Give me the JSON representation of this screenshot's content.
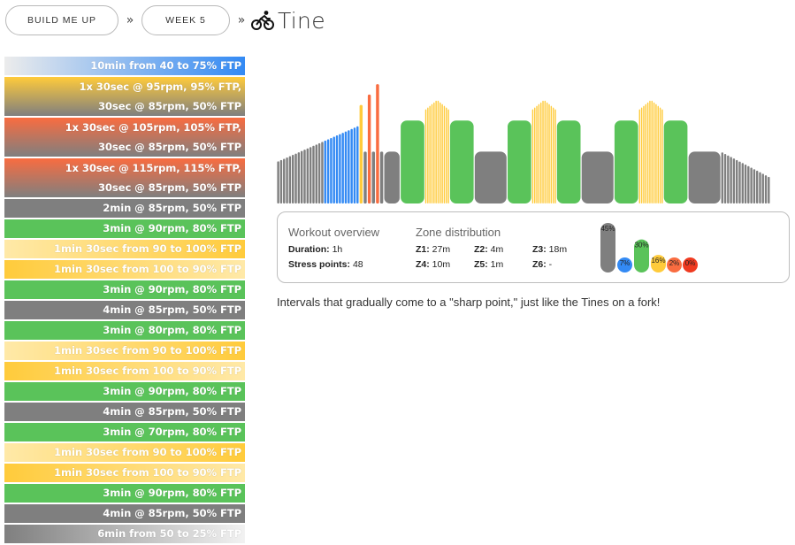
{
  "breadcrumb": {
    "plan_label": "BUILD ME UP",
    "week_label": "WEEK 5",
    "separator": "»",
    "title": "Tine",
    "title_icon": "cyclist-icon"
  },
  "colors": {
    "z1": "#7f7f7f",
    "z2": "#338af4",
    "z3": "#5ac35a",
    "z4": "#ffcb3b",
    "z5": "#f96c40",
    "z6": "#ef3a20"
  },
  "intervals": [
    {
      "lines": [
        "10min from 40 to 75% FTP"
      ],
      "bg": "linear-gradient(to right,#ececec,#338af4)"
    },
    {
      "lines": [
        "1x 30sec @ 95rpm, 95% FTP,",
        "30sec @ 85rpm, 50% FTP"
      ],
      "bg": "linear-gradient(to bottom,#ffcb3b,#7f7f7f)"
    },
    {
      "lines": [
        "1x 30sec @ 105rpm, 105% FTP,",
        "30sec @ 85rpm, 50% FTP"
      ],
      "bg": "linear-gradient(to bottom,#f96c40,#7f7f7f)"
    },
    {
      "lines": [
        "1x 30sec @ 115rpm, 115% FTP,",
        "30sec @ 85rpm, 50% FTP"
      ],
      "bg": "linear-gradient(to bottom,#f96c40,#7f7f7f)"
    },
    {
      "lines": [
        "2min @ 85rpm, 50% FTP"
      ],
      "bg": "#7f7f7f"
    },
    {
      "lines": [
        "3min @ 90rpm, 80% FTP"
      ],
      "bg": "#5ac35a"
    },
    {
      "lines": [
        "1min 30sec from 90 to 100% FTP"
      ],
      "bg": "linear-gradient(to right,#ffe9a8,#ffcb3b)"
    },
    {
      "lines": [
        "1min 30sec from 100 to 90% FTP"
      ],
      "bg": "linear-gradient(to right,#ffcb3b,#ffe9a8)"
    },
    {
      "lines": [
        "3min @ 90rpm, 80% FTP"
      ],
      "bg": "#5ac35a"
    },
    {
      "lines": [
        "4min @ 85rpm, 50% FTP"
      ],
      "bg": "#7f7f7f"
    },
    {
      "lines": [
        "3min @ 80rpm, 80% FTP"
      ],
      "bg": "#5ac35a"
    },
    {
      "lines": [
        "1min 30sec from 90 to 100% FTP"
      ],
      "bg": "linear-gradient(to right,#ffe9a8,#ffcb3b)"
    },
    {
      "lines": [
        "1min 30sec from 100 to 90% FTP"
      ],
      "bg": "linear-gradient(to right,#ffcb3b,#ffe9a8)"
    },
    {
      "lines": [
        "3min @ 90rpm, 80% FTP"
      ],
      "bg": "#5ac35a"
    },
    {
      "lines": [
        "4min @ 85rpm, 50% FTP"
      ],
      "bg": "#7f7f7f"
    },
    {
      "lines": [
        "3min @ 70rpm, 80% FTP"
      ],
      "bg": "#5ac35a"
    },
    {
      "lines": [
        "1min 30sec from 90 to 100% FTP"
      ],
      "bg": "linear-gradient(to right,#ffe9a8,#ffcb3b)"
    },
    {
      "lines": [
        "1min 30sec from 100 to 90% FTP"
      ],
      "bg": "linear-gradient(to right,#ffcb3b,#ffe9a8)"
    },
    {
      "lines": [
        "3min @ 90rpm, 80% FTP"
      ],
      "bg": "#5ac35a"
    },
    {
      "lines": [
        "4min @ 85rpm, 50% FTP"
      ],
      "bg": "#7f7f7f"
    },
    {
      "lines": [
        "6min from 50 to 25% FTP"
      ],
      "bg": "linear-gradient(to right,#7f7f7f,#f2f2f2)"
    }
  ],
  "overview": {
    "title": "Workout overview",
    "duration_label": "Duration:",
    "duration_value": "1h",
    "stress_label": "Stress points:",
    "stress_value": "48",
    "zone_title": "Zone distribution",
    "zones": [
      {
        "label": "Z1:",
        "value": "27m",
        "pct": "45%",
        "fraction": 0.45
      },
      {
        "label": "Z2:",
        "value": "4m",
        "pct": "7%",
        "fraction": 0.07
      },
      {
        "label": "Z3:",
        "value": "18m",
        "pct": "30%",
        "fraction": 0.3
      },
      {
        "label": "Z4:",
        "value": "10m",
        "pct": "16%",
        "fraction": 0.16
      },
      {
        "label": "Z5:",
        "value": "1m",
        "pct": "2%",
        "fraction": 0.02
      },
      {
        "label": "Z6:",
        "value": "-",
        "pct": "0%",
        "fraction": 0.0
      }
    ]
  },
  "description": "Intervals that gradually come to a \"sharp point,\" just like the Tines on a fork!",
  "workout_profile": {
    "segments": [
      {
        "type": "ramp",
        "duration_s": 600,
        "from": 0.4,
        "to": 0.75
      },
      {
        "type": "steady",
        "duration_s": 30,
        "power": 0.95
      },
      {
        "type": "steady",
        "duration_s": 30,
        "power": 0.5
      },
      {
        "type": "steady",
        "duration_s": 30,
        "power": 1.05
      },
      {
        "type": "steady",
        "duration_s": 30,
        "power": 0.5
      },
      {
        "type": "steady",
        "duration_s": 30,
        "power": 1.15
      },
      {
        "type": "steady",
        "duration_s": 30,
        "power": 0.5
      },
      {
        "type": "steady",
        "duration_s": 120,
        "power": 0.5
      },
      {
        "type": "steady",
        "duration_s": 180,
        "power": 0.8
      },
      {
        "type": "ramp",
        "duration_s": 90,
        "from": 0.9,
        "to": 1.0
      },
      {
        "type": "ramp",
        "duration_s": 90,
        "from": 1.0,
        "to": 0.9
      },
      {
        "type": "steady",
        "duration_s": 180,
        "power": 0.8
      },
      {
        "type": "steady",
        "duration_s": 240,
        "power": 0.5
      },
      {
        "type": "steady",
        "duration_s": 180,
        "power": 0.8
      },
      {
        "type": "ramp",
        "duration_s": 90,
        "from": 0.9,
        "to": 1.0
      },
      {
        "type": "ramp",
        "duration_s": 90,
        "from": 1.0,
        "to": 0.9
      },
      {
        "type": "steady",
        "duration_s": 180,
        "power": 0.8
      },
      {
        "type": "steady",
        "duration_s": 240,
        "power": 0.5
      },
      {
        "type": "steady",
        "duration_s": 180,
        "power": 0.8
      },
      {
        "type": "ramp",
        "duration_s": 90,
        "from": 0.9,
        "to": 1.0
      },
      {
        "type": "ramp",
        "duration_s": 90,
        "from": 1.0,
        "to": 0.9
      },
      {
        "type": "steady",
        "duration_s": 180,
        "power": 0.8
      },
      {
        "type": "steady",
        "duration_s": 240,
        "power": 0.5
      },
      {
        "type": "ramp",
        "duration_s": 360,
        "from": 0.5,
        "to": 0.25
      }
    ]
  }
}
